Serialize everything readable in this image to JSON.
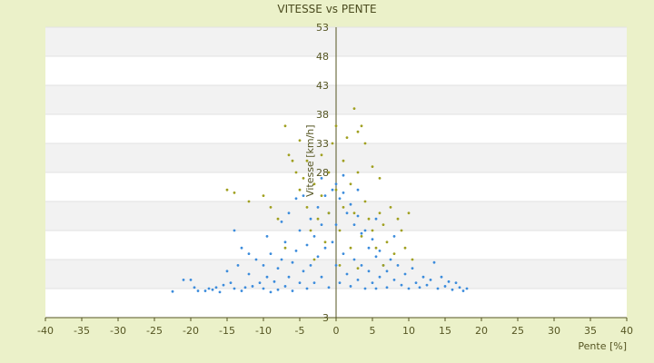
{
  "colors": {
    "background": "#ebf1c9",
    "plot_band_light": "#ffffff",
    "plot_band_dark": "#f2f2f2",
    "series_blue": "#3c8cdc",
    "series_olive": "#a0a020",
    "axis": "#555522"
  },
  "chart_data": {
    "type": "scatter",
    "title": "VITESSE vs PENTE",
    "xlabel": "Pente [%]",
    "ylabel": "Vitesse [km/h]",
    "xlim": [
      -40,
      40
    ],
    "ylim": [
      3,
      53
    ],
    "x_ticks": [
      -40,
      -35,
      -30,
      -25,
      -20,
      -15,
      -10,
      -5,
      0,
      5,
      10,
      15,
      20,
      25,
      30,
      35,
      40
    ],
    "y_ticks": [
      3,
      8,
      13,
      18,
      23,
      28,
      33,
      38,
      43,
      48,
      53
    ],
    "y_tick_labels": [
      "3",
      "",
      "",
      "",
      "",
      "28",
      "33",
      "38",
      "43",
      "48",
      "53"
    ],
    "x_tick_labels": [
      "-40",
      "-35",
      "-30",
      "-25",
      "-20",
      "-15",
      "-10",
      "-5",
      "0",
      "5",
      "10",
      "15",
      "20",
      "25",
      "30",
      "35",
      "40"
    ],
    "grid": true,
    "legend": "none",
    "series": [
      {
        "color": "#3c8cdc",
        "points": [
          [
            -22.5,
            7.5
          ],
          [
            -21,
            9.5
          ],
          [
            -20,
            9.5
          ],
          [
            -19.5,
            8.2
          ],
          [
            -19,
            7.6
          ],
          [
            -18,
            7.6
          ],
          [
            -17.5,
            8
          ],
          [
            -17,
            7.8
          ],
          [
            -16.5,
            8.2
          ],
          [
            -16,
            7.4
          ],
          [
            -15.5,
            8.6
          ],
          [
            -15,
            11
          ],
          [
            -14.5,
            9
          ],
          [
            -14,
            8
          ],
          [
            -13.5,
            12
          ],
          [
            -13,
            7.6
          ],
          [
            -12.5,
            8.2
          ],
          [
            -12,
            10.5
          ],
          [
            -12,
            14
          ],
          [
            -11.5,
            8.4
          ],
          [
            -11,
            13
          ],
          [
            -10.5,
            9
          ],
          [
            -10,
            8
          ],
          [
            -10,
            12
          ],
          [
            -9.5,
            10
          ],
          [
            -9,
            7.4
          ],
          [
            -9,
            14
          ],
          [
            -8.5,
            9.2
          ],
          [
            -8,
            11.5
          ],
          [
            -8,
            7.8
          ],
          [
            -7.5,
            13
          ],
          [
            -7,
            8.4
          ],
          [
            -7,
            16
          ],
          [
            -6.5,
            10
          ],
          [
            -6,
            12.5
          ],
          [
            -6,
            7.6
          ],
          [
            -5.5,
            14.5
          ],
          [
            -5,
            9
          ],
          [
            -5,
            18
          ],
          [
            -4.5,
            11
          ],
          [
            -4,
            15.5
          ],
          [
            -4,
            8
          ],
          [
            -3.5,
            20
          ],
          [
            -3.5,
            12
          ],
          [
            -3,
            17
          ],
          [
            -3,
            9
          ],
          [
            -2.5,
            22
          ],
          [
            -2.5,
            13.5
          ],
          [
            -2,
            19
          ],
          [
            -2,
            10
          ],
          [
            -1.5,
            24
          ],
          [
            -1.5,
            15
          ],
          [
            -1,
            21
          ],
          [
            -1,
            8.2
          ],
          [
            -0.5,
            25
          ],
          [
            -0.5,
            16
          ],
          [
            0,
            26
          ],
          [
            0,
            12
          ],
          [
            0,
            19
          ],
          [
            0.5,
            23.5
          ],
          [
            0.5,
            9
          ],
          [
            1,
            24.5
          ],
          [
            1,
            14
          ],
          [
            1.5,
            21
          ],
          [
            1.5,
            10.5
          ],
          [
            2,
            22.5
          ],
          [
            2,
            8.4
          ],
          [
            2.5,
            19
          ],
          [
            2.5,
            13
          ],
          [
            3,
            20.5
          ],
          [
            3,
            9.5
          ],
          [
            3.5,
            17.5
          ],
          [
            3.5,
            12
          ],
          [
            4,
            18
          ],
          [
            4,
            8
          ],
          [
            4.5,
            15
          ],
          [
            4.5,
            11
          ],
          [
            5,
            16.5
          ],
          [
            5,
            9
          ],
          [
            5.5,
            13.5
          ],
          [
            5.5,
            8
          ],
          [
            6,
            14.5
          ],
          [
            6,
            10
          ],
          [
            6.5,
            12
          ],
          [
            7,
            11
          ],
          [
            7,
            8.2
          ],
          [
            7.5,
            13
          ],
          [
            8,
            9.5
          ],
          [
            8.5,
            12
          ],
          [
            9,
            8.6
          ],
          [
            9.5,
            10.5
          ],
          [
            10,
            8
          ],
          [
            10.5,
            11.5
          ],
          [
            11,
            9
          ],
          [
            11.5,
            8.2
          ],
          [
            12,
            10
          ],
          [
            12.5,
            8.6
          ],
          [
            13,
            9.5
          ],
          [
            13.5,
            12.5
          ],
          [
            14,
            8
          ],
          [
            14.5,
            10
          ],
          [
            15,
            8.4
          ],
          [
            15.5,
            9.2
          ],
          [
            16,
            7.8
          ],
          [
            16.5,
            9
          ],
          [
            17,
            8.2
          ],
          [
            17.5,
            7.6
          ],
          [
            18,
            8
          ],
          [
            -14,
            18
          ],
          [
            -13,
            15
          ],
          [
            -9.5,
            17
          ],
          [
            -7.5,
            19.5
          ],
          [
            -6.5,
            21
          ],
          [
            -5.5,
            23.5
          ],
          [
            -4.5,
            24
          ],
          [
            -2,
            27
          ],
          [
            1,
            27.5
          ],
          [
            3,
            25
          ],
          [
            5.5,
            20
          ],
          [
            8,
            17
          ]
        ]
      },
      {
        "color": "#a0a020",
        "points": [
          [
            -15,
            25
          ],
          [
            -14,
            24.5
          ],
          [
            -12,
            23
          ],
          [
            -10,
            24
          ],
          [
            -9,
            22
          ],
          [
            -8,
            20
          ],
          [
            -7,
            36
          ],
          [
            -6.5,
            31
          ],
          [
            -6,
            30
          ],
          [
            -5.5,
            28
          ],
          [
            -5,
            33.5
          ],
          [
            -5,
            25
          ],
          [
            -4.5,
            27
          ],
          [
            -4,
            22
          ],
          [
            -4,
            30
          ],
          [
            -3.5,
            18
          ],
          [
            -3,
            26
          ],
          [
            -2.5,
            20
          ],
          [
            -2,
            31
          ],
          [
            -2,
            24
          ],
          [
            -1.5,
            16
          ],
          [
            -1,
            28
          ],
          [
            -1,
            21
          ],
          [
            -0.5,
            33
          ],
          [
            0,
            36
          ],
          [
            0,
            25
          ],
          [
            0.5,
            18
          ],
          [
            1,
            30
          ],
          [
            1,
            22
          ],
          [
            1.5,
            34
          ],
          [
            2,
            26
          ],
          [
            2,
            15
          ],
          [
            2.5,
            39
          ],
          [
            2.5,
            21
          ],
          [
            3,
            35
          ],
          [
            3,
            28
          ],
          [
            3.5,
            36
          ],
          [
            3.5,
            17
          ],
          [
            4,
            33
          ],
          [
            4,
            23
          ],
          [
            4.5,
            20
          ],
          [
            5,
            29
          ],
          [
            5,
            18
          ],
          [
            5.5,
            15
          ],
          [
            6,
            27
          ],
          [
            6,
            21
          ],
          [
            6.5,
            19
          ],
          [
            7,
            16
          ],
          [
            7.5,
            22
          ],
          [
            8,
            14
          ],
          [
            8.5,
            20
          ],
          [
            9,
            18
          ],
          [
            9.5,
            15
          ],
          [
            10,
            21
          ],
          [
            10.5,
            13
          ],
          [
            -3,
            13
          ],
          [
            -7,
            15
          ],
          [
            0.5,
            12
          ],
          [
            3,
            11.5
          ],
          [
            6.5,
            12
          ]
        ]
      }
    ]
  }
}
